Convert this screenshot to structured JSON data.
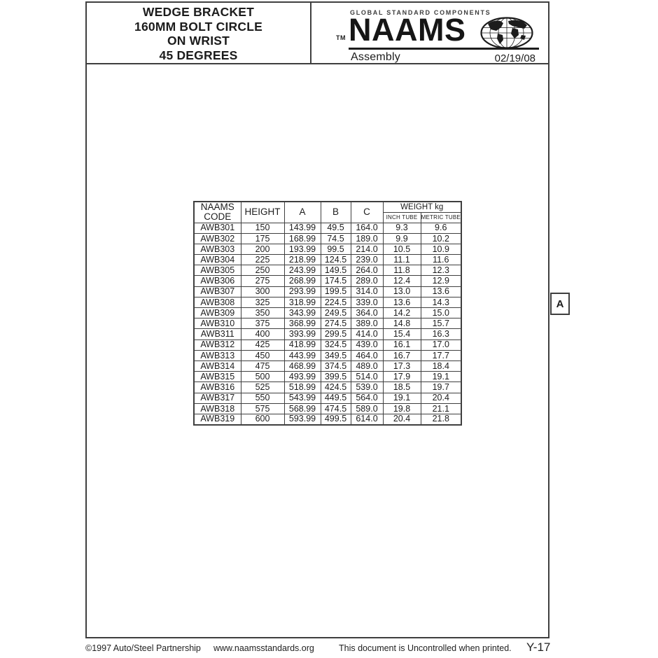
{
  "colors": {
    "ink": "#1c1c1c",
    "line": "#3f3f3f",
    "paper": "#ffffff"
  },
  "header": {
    "title_lines": [
      "WEDGE BRACKET",
      "160MM BOLT CIRCLE",
      "ON WRIST",
      "45 DEGREES"
    ],
    "brand": {
      "tagline": "GLOBAL STANDARD COMPONENTS",
      "trademark": "TM",
      "name": "NAAMS",
      "category": "Assembly",
      "date": "02/19/08",
      "globe_icon": "globe-icon"
    }
  },
  "revision_marker": "A",
  "table": {
    "col_headers": {
      "code_line1": "NAAMS",
      "code_line2": "CODE",
      "height": "HEIGHT",
      "a": "A",
      "b": "B",
      "c": "C",
      "weight_group": "WEIGHT kg",
      "inch_tube": "INCH TUBE",
      "metric_tube": "METRIC TUBE"
    },
    "rows": [
      {
        "code": "AWB301",
        "height": "150",
        "a": "143.99",
        "b": "49.5",
        "c": "164.0",
        "inch": "9.3",
        "metric": "9.6"
      },
      {
        "code": "AWB302",
        "height": "175",
        "a": "168.99",
        "b": "74.5",
        "c": "189.0",
        "inch": "9.9",
        "metric": "10.2"
      },
      {
        "code": "AWB303",
        "height": "200",
        "a": "193.99",
        "b": "99.5",
        "c": "214.0",
        "inch": "10.5",
        "metric": "10.9"
      },
      {
        "code": "AWB304",
        "height": "225",
        "a": "218.99",
        "b": "124.5",
        "c": "239.0",
        "inch": "11.1",
        "metric": "11.6"
      },
      {
        "code": "AWB305",
        "height": "250",
        "a": "243.99",
        "b": "149.5",
        "c": "264.0",
        "inch": "11.8",
        "metric": "12.3"
      },
      {
        "code": "AWB306",
        "height": "275",
        "a": "268.99",
        "b": "174.5",
        "c": "289.0",
        "inch": "12.4",
        "metric": "12.9"
      },
      {
        "code": "AWB307",
        "height": "300",
        "a": "293.99",
        "b": "199.5",
        "c": "314.0",
        "inch": "13.0",
        "metric": "13.6"
      },
      {
        "code": "AWB308",
        "height": "325",
        "a": "318.99",
        "b": "224.5",
        "c": "339.0",
        "inch": "13.6",
        "metric": "14.3"
      },
      {
        "code": "AWB309",
        "height": "350",
        "a": "343.99",
        "b": "249.5",
        "c": "364.0",
        "inch": "14.2",
        "metric": "15.0"
      },
      {
        "code": "AWB310",
        "height": "375",
        "a": "368.99",
        "b": "274.5",
        "c": "389.0",
        "inch": "14.8",
        "metric": "15.7"
      },
      {
        "code": "AWB311",
        "height": "400",
        "a": "393.99",
        "b": "299.5",
        "c": "414.0",
        "inch": "15.4",
        "metric": "16.3"
      },
      {
        "code": "AWB312",
        "height": "425",
        "a": "418.99",
        "b": "324.5",
        "c": "439.0",
        "inch": "16.1",
        "metric": "17.0"
      },
      {
        "code": "AWB313",
        "height": "450",
        "a": "443.99",
        "b": "349.5",
        "c": "464.0",
        "inch": "16.7",
        "metric": "17.7"
      },
      {
        "code": "AWB314",
        "height": "475",
        "a": "468.99",
        "b": "374.5",
        "c": "489.0",
        "inch": "17.3",
        "metric": "18.4"
      },
      {
        "code": "AWB315",
        "height": "500",
        "a": "493.99",
        "b": "399.5",
        "c": "514.0",
        "inch": "17.9",
        "metric": "19.1"
      },
      {
        "code": "AWB316",
        "height": "525",
        "a": "518.99",
        "b": "424.5",
        "c": "539.0",
        "inch": "18.5",
        "metric": "19.7"
      },
      {
        "code": "AWB317",
        "height": "550",
        "a": "543.99",
        "b": "449.5",
        "c": "564.0",
        "inch": "19.1",
        "metric": "20.4"
      },
      {
        "code": "AWB318",
        "height": "575",
        "a": "568.99",
        "b": "474.5",
        "c": "589.0",
        "inch": "19.8",
        "metric": "21.1"
      },
      {
        "code": "AWB319",
        "height": "600",
        "a": "593.99",
        "b": "499.5",
        "c": "614.0",
        "inch": "20.4",
        "metric": "21.8"
      }
    ]
  },
  "footer": {
    "copyright": "©1997 Auto/Steel Partnership",
    "website": "www.naamsstandards.org",
    "notice": "This document is Uncontrolled when printed.",
    "page_ref": "Y-17"
  }
}
